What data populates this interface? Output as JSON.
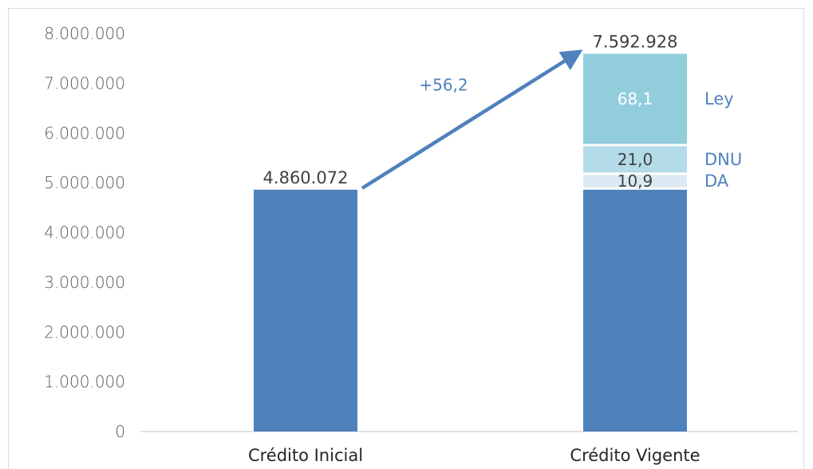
{
  "chart_data": {
    "type": "bar",
    "stacked": true,
    "categories": [
      "Crédito Inicial",
      "Crédito Vigente"
    ],
    "ylim": [
      0,
      8000000
    ],
    "yticks": [
      0,
      1000000,
      2000000,
      3000000,
      4000000,
      5000000,
      6000000,
      7000000,
      8000000
    ],
    "ytick_labels": [
      "0",
      "1.000.000",
      "2.000.000",
      "3.000.000",
      "4.000.000",
      "5.000.000",
      "6.000.000",
      "7.000.000",
      "8.000.000"
    ],
    "grid": false,
    "base": {
      "values": [
        4860072,
        4860072
      ],
      "color": "#4f81bd"
    },
    "segments": [
      {
        "name": "DA",
        "value": 298000,
        "share_label": "10,9",
        "color": "#dcebf3",
        "label_color": "#404040",
        "legend_color": "#4f81bd"
      },
      {
        "name": "DNU",
        "value": 575000,
        "share_label": "21,0",
        "color": "#b4dbe8",
        "label_color": "#404040",
        "legend_color": "#4f81bd"
      },
      {
        "name": "Ley",
        "value": 1859856,
        "share_label": "68,1",
        "color": "#92cddc",
        "label_color": "#ffffff",
        "legend_color": "#4f81bd"
      }
    ],
    "total_labels": [
      "4.860.072",
      "7.592.928"
    ],
    "growth": {
      "label": "+56,2",
      "color": "#4f81bd"
    }
  }
}
